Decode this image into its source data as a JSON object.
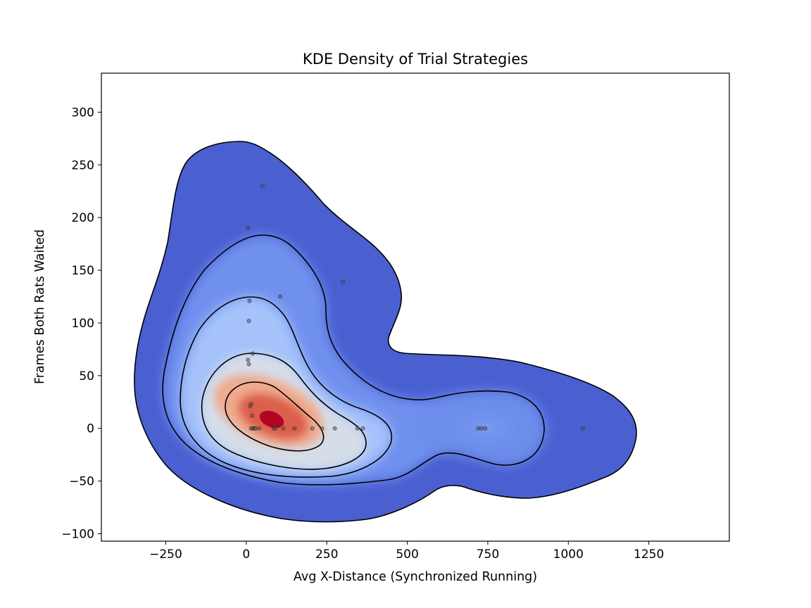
{
  "chart_data": {
    "type": "kde-contour",
    "title": "KDE Density of Trial Strategies",
    "xlabel": "Avg X-Distance (Synchronized Running)",
    "ylabel": "Frames Both Rats Waited",
    "xlim": [
      -450,
      1500
    ],
    "ylim": [
      -107,
      337
    ],
    "xticks": [
      -250,
      0,
      250,
      500,
      750,
      1000,
      1250
    ],
    "yticks": [
      -100,
      -50,
      0,
      50,
      100,
      150,
      200,
      250,
      300
    ],
    "xtick_labels": [
      "−250",
      "0",
      "250",
      "500",
      "750",
      "1000",
      "1250"
    ],
    "ytick_labels": [
      "−100",
      "−50",
      "0",
      "50",
      "100",
      "150",
      "200",
      "250",
      "300"
    ],
    "grid": false,
    "colormap": "coolwarm",
    "colors": {
      "outer": "#3b4cc0",
      "mid": "#8db0fe",
      "center": "#dddddd",
      "warm": "#f49a7b",
      "peak": "#b40426",
      "contour_line": "#000000",
      "point": "#555555"
    },
    "points": [
      {
        "x": 50,
        "y": 230
      },
      {
        "x": 5,
        "y": 190
      },
      {
        "x": 300,
        "y": 139
      },
      {
        "x": 10,
        "y": 121
      },
      {
        "x": 105,
        "y": 125
      },
      {
        "x": 8,
        "y": 102
      },
      {
        "x": 20,
        "y": 71
      },
      {
        "x": 5,
        "y": 65
      },
      {
        "x": 8,
        "y": 61
      },
      {
        "x": 15,
        "y": 23
      },
      {
        "x": 12,
        "y": 21
      },
      {
        "x": 18,
        "y": 12
      },
      {
        "x": 15,
        "y": 0
      },
      {
        "x": 20,
        "y": 0
      },
      {
        "x": 25,
        "y": 0
      },
      {
        "x": 28,
        "y": 0
      },
      {
        "x": 40,
        "y": 0
      },
      {
        "x": 85,
        "y": 0
      },
      {
        "x": 90,
        "y": 0
      },
      {
        "x": 115,
        "y": 0
      },
      {
        "x": 150,
        "y": 0
      },
      {
        "x": 205,
        "y": 0
      },
      {
        "x": 235,
        "y": 0
      },
      {
        "x": 275,
        "y": 0
      },
      {
        "x": 345,
        "y": 0
      },
      {
        "x": 362,
        "y": 0
      },
      {
        "x": 720,
        "y": 0
      },
      {
        "x": 730,
        "y": 0
      },
      {
        "x": 742,
        "y": 0
      },
      {
        "x": 1045,
        "y": 0
      }
    ]
  }
}
